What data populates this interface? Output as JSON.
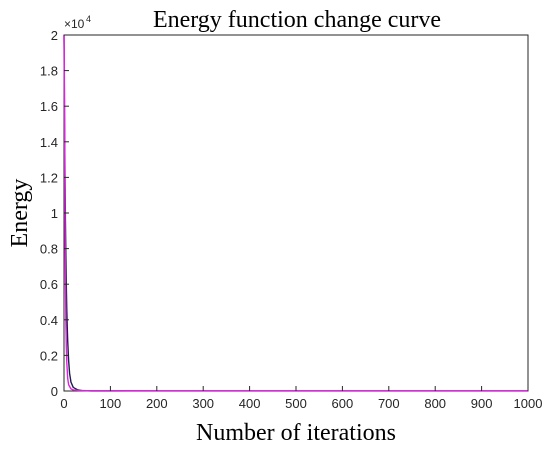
{
  "chart_data": {
    "type": "line",
    "title": "Energy function change curve",
    "xlabel": "Number of iterations",
    "ylabel": "Energy",
    "y_multiplier_label": "×10",
    "y_multiplier_exponent": "4",
    "xlim": [
      0,
      1000
    ],
    "ylim": [
      0,
      2
    ],
    "x_ticks": [
      "0",
      "100",
      "200",
      "300",
      "400",
      "500",
      "600",
      "700",
      "800",
      "900",
      "1000"
    ],
    "y_ticks": [
      "0",
      "0.2",
      "0.4",
      "0.6",
      "0.8",
      "1",
      "1.2",
      "1.4",
      "1.6",
      "1.8",
      "2"
    ],
    "grid": false,
    "legend": "none",
    "series": [
      {
        "color": "#1c1c4e",
        "x": [
          0,
          1,
          2,
          3,
          4,
          5,
          6,
          7,
          8,
          10,
          12,
          15,
          20,
          30,
          40,
          60,
          100,
          200,
          400,
          600,
          800,
          1000
        ],
        "y": [
          2.0,
          1.6,
          1.25,
          0.97,
          0.76,
          0.59,
          0.46,
          0.36,
          0.28,
          0.17,
          0.1,
          0.05,
          0.02,
          0.006,
          0.002,
          0.0005,
          0.0002,
          0.0001,
          0.0001,
          0.0001,
          0.0001,
          0.0001
        ]
      },
      {
        "color": "#e020e0",
        "x": [
          0,
          0.5,
          1,
          1.5,
          2,
          2.5,
          3,
          4,
          5,
          6,
          8,
          10,
          15,
          20,
          30,
          50,
          100,
          200,
          400,
          600,
          800,
          1000
        ],
        "y": [
          2.0,
          1.9,
          1.65,
          1.35,
          1.08,
          0.85,
          0.66,
          0.4,
          0.25,
          0.16,
          0.07,
          0.035,
          0.012,
          0.006,
          0.003,
          0.002,
          0.0015,
          0.0012,
          0.001,
          0.001,
          0.001,
          0.001
        ]
      }
    ]
  }
}
